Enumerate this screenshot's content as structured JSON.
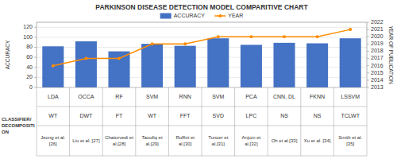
{
  "chart_data": {
    "type": "bar",
    "title": "PARKINSON DISEASE DETECTION MODEL COMPARITIVE CHART",
    "categories": [
      [
        "LDA",
        "WT",
        "Jeong et al.\n[26]"
      ],
      [
        "OCCA",
        "DWT",
        "Liu et al. [27]"
      ],
      [
        "RF",
        "FT",
        "Chaturvedi et\nal.[28]"
      ],
      [
        "SVM",
        "WT",
        "Taoufiq et\nal.[29]"
      ],
      [
        "RNN",
        "FFT",
        "Ruffini et\nal.[30]"
      ],
      [
        "SVM",
        "SVD",
        "Tuncer et\nal.[31]"
      ],
      [
        "PCA",
        "LPC",
        "Anjum et\nal.[32]"
      ],
      [
        "CNN, DL",
        "NS",
        "Oh et al.[33]"
      ],
      [
        "FKNN",
        "NS",
        "Xu et al. [34]"
      ],
      [
        "LSSVM",
        "TCLWT",
        "Smith et al.\n[35]"
      ]
    ],
    "annotations": [
      "CLASSIFIER/",
      "DECOMPOSITI",
      "ON"
    ],
    "ylabel": "ACCURACY",
    "y2label": "YEAR OF PUBLICATION",
    "series": [
      {
        "name": "ACCURACY",
        "color": "#4472C4",
        "values": [
          82,
          92,
          72,
          87,
          83,
          98,
          85,
          89,
          88,
          98
        ]
      },
      {
        "name": "YEAR",
        "color": "#FF8C00",
        "type": "line",
        "marker": "circle",
        "axis": "y2",
        "values": [
          2016,
          2017,
          2017,
          2019,
          2019,
          2020,
          2020,
          2020,
          2020,
          2021
        ]
      }
    ],
    "ylim": [
      0,
      130
    ],
    "yticks": [
      0,
      20,
      40,
      60,
      80,
      100,
      120
    ],
    "y2lim": [
      2013,
      2022
    ],
    "y2ticks": [
      2013,
      2014,
      2015,
      2016,
      2017,
      2018,
      2019,
      2020,
      2021,
      2022
    ],
    "grid": true,
    "legend": "top"
  }
}
